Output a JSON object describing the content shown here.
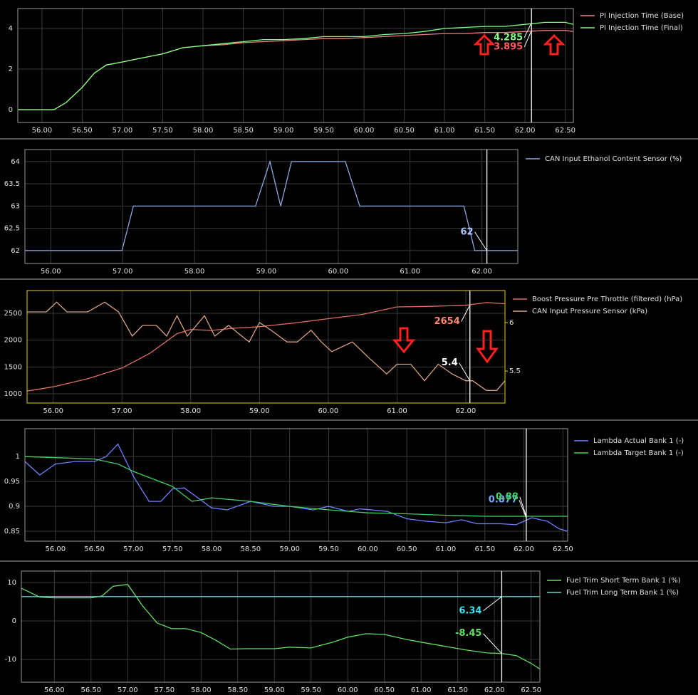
{
  "chart_data": [
    {
      "type": "line",
      "xlim": [
        55.7,
        62.6
      ],
      "ylim": [
        -0.63,
        4.98
      ],
      "xticks": [
        {
          "value": 56,
          "label": "56.00"
        },
        {
          "value": 56.5,
          "label": "56.50"
        },
        {
          "value": 57,
          "label": "57.00"
        },
        {
          "value": 57.5,
          "label": "57.50"
        },
        {
          "value": 58,
          "label": "58.00"
        },
        {
          "value": 58.5,
          "label": "58.50"
        },
        {
          "value": 59,
          "label": "59.00"
        },
        {
          "value": 59.5,
          "label": "59.50"
        },
        {
          "value": 60,
          "label": "60.00"
        },
        {
          "value": 60.5,
          "label": "60.50"
        },
        {
          "value": 61,
          "label": "61.00"
        },
        {
          "value": 61.5,
          "label": "61.50"
        },
        {
          "value": 62,
          "label": "62.00"
        },
        {
          "value": 62.5,
          "label": "62.50"
        }
      ],
      "yticks": [
        0,
        2,
        4
      ],
      "grid": true,
      "cursor": 62.08,
      "cursor_labels": [
        {
          "value": 4.285,
          "color": "#80ff80"
        },
        {
          "value": 3.895,
          "color": "#ff6060"
        }
      ],
      "series": [
        {
          "name": "PI Injection Time (Base)",
          "color": "#f08080",
          "x": [
            55.7,
            56.0,
            56.15,
            56.3,
            56.5,
            56.65,
            56.8,
            57.0,
            57.25,
            57.5,
            57.75,
            58.0,
            58.25,
            58.5,
            58.75,
            59.0,
            59.25,
            59.5,
            59.75,
            60.0,
            60.25,
            60.5,
            60.75,
            61.0,
            61.25,
            61.5,
            61.75,
            62.0,
            62.25,
            62.5,
            62.6
          ],
          "values": [
            0,
            0,
            0,
            0.35,
            1.1,
            1.8,
            2.2,
            2.35,
            2.55,
            2.75,
            3.05,
            3.15,
            3.2,
            3.3,
            3.35,
            3.4,
            3.45,
            3.5,
            3.5,
            3.55,
            3.6,
            3.65,
            3.7,
            3.75,
            3.75,
            3.8,
            3.8,
            3.85,
            3.9,
            3.9,
            3.85
          ]
        },
        {
          "name": "PI Injection Time (Final)",
          "color": "#80ff80",
          "x": [
            55.7,
            56.0,
            56.15,
            56.3,
            56.5,
            56.65,
            56.8,
            57.0,
            57.25,
            57.5,
            57.75,
            58.0,
            58.25,
            58.5,
            58.75,
            59.0,
            59.25,
            59.5,
            59.75,
            60.0,
            60.25,
            60.5,
            60.75,
            61.0,
            61.25,
            61.5,
            61.75,
            62.0,
            62.25,
            62.5,
            62.6
          ],
          "values": [
            0,
            0,
            0,
            0.35,
            1.1,
            1.8,
            2.2,
            2.35,
            2.55,
            2.75,
            3.05,
            3.15,
            3.25,
            3.35,
            3.45,
            3.45,
            3.5,
            3.6,
            3.6,
            3.6,
            3.7,
            3.75,
            3.85,
            4.0,
            4.05,
            4.1,
            4.1,
            4.2,
            4.3,
            4.3,
            4.2
          ]
        }
      ]
    },
    {
      "type": "line",
      "xlim": [
        55.64,
        62.5
      ],
      "ylim": [
        61.71,
        64.27
      ],
      "xticks": [
        {
          "value": 56,
          "label": "56.00"
        },
        {
          "value": 57,
          "label": "57.00"
        },
        {
          "value": 58,
          "label": "58.00"
        },
        {
          "value": 59,
          "label": "59.00"
        },
        {
          "value": 60,
          "label": "60.00"
        },
        {
          "value": 61,
          "label": "61.00"
        },
        {
          "value": 62,
          "label": "62.00"
        }
      ],
      "yticks": [
        62,
        62.5,
        63,
        63.5,
        64
      ],
      "grid": true,
      "cursor": 62.07,
      "cursor_labels": [
        {
          "value": 62,
          "color": "#b0c8ff"
        }
      ],
      "series": [
        {
          "name": "CAN Input Ethanol Content Sensor (%)",
          "color": "#8fa8e0",
          "x": [
            55.64,
            56.99,
            57.15,
            58.85,
            59.05,
            59.2,
            59.35,
            60.1,
            60.3,
            61.75,
            61.9,
            62.5
          ],
          "values": [
            62,
            62,
            63,
            63,
            64,
            63,
            64,
            64,
            63,
            63,
            62,
            62
          ]
        }
      ]
    },
    {
      "type": "line",
      "xlim": [
        55.62,
        62.57
      ],
      "ylim": [
        827,
        2925
      ],
      "y2lim": [
        5.17,
        6.33
      ],
      "xticks": [
        {
          "value": 56,
          "label": "56.00"
        },
        {
          "value": 57,
          "label": "57.00"
        },
        {
          "value": 58,
          "label": "58.00"
        },
        {
          "value": 59,
          "label": "59.00"
        },
        {
          "value": 60,
          "label": "60.00"
        },
        {
          "value": 61,
          "label": "61.00"
        },
        {
          "value": 62,
          "label": "62.00"
        }
      ],
      "yticks": [
        1000,
        1500,
        2000,
        2500
      ],
      "y2ticks": [
        5.5,
        6
      ],
      "grid": true,
      "cursor": 62.06,
      "cursor_labels": [
        {
          "value": 2654,
          "color": "#ff8870"
        },
        {
          "value": 5.4,
          "color": "#ffffff",
          "axis": "y2"
        }
      ],
      "series": [
        {
          "name": "Boost Pressure Pre Throttle (filtered) (hPa)",
          "color": "#e07060",
          "x": [
            55.62,
            56.0,
            56.5,
            57.0,
            57.4,
            57.8,
            58.0,
            58.3,
            58.6,
            59.0,
            59.5,
            60.0,
            60.5,
            61.0,
            61.5,
            62.0,
            62.3,
            62.57
          ],
          "values": [
            1050,
            1130,
            1280,
            1480,
            1750,
            2120,
            2200,
            2180,
            2220,
            2250,
            2320,
            2400,
            2480,
            2620,
            2630,
            2650,
            2700,
            2680
          ]
        },
        {
          "name": "CAN Input Pressure Sensor (kPa)",
          "color": "#d8a080",
          "axis": "y2",
          "x": [
            55.62,
            55.9,
            56.05,
            56.2,
            56.5,
            56.75,
            56.95,
            57.15,
            57.3,
            57.5,
            57.65,
            57.8,
            57.95,
            58.2,
            58.35,
            58.55,
            58.85,
            59.0,
            59.15,
            59.4,
            59.55,
            59.75,
            59.9,
            60.05,
            60.35,
            60.6,
            60.85,
            61.0,
            61.2,
            61.4,
            61.6,
            61.8,
            62.0,
            62.1,
            62.3,
            62.45,
            62.57
          ],
          "values": [
            6.11,
            6.11,
            6.21,
            6.11,
            6.11,
            6.21,
            6.11,
            5.86,
            5.97,
            5.97,
            5.86,
            6.07,
            5.86,
            6.07,
            5.86,
            5.97,
            5.8,
            6.0,
            5.93,
            5.8,
            5.8,
            5.92,
            5.8,
            5.7,
            5.8,
            5.63,
            5.47,
            5.57,
            5.57,
            5.4,
            5.57,
            5.47,
            5.4,
            5.4,
            5.3,
            5.3,
            5.4
          ]
        }
      ]
    },
    {
      "type": "line",
      "xlim": [
        55.61,
        62.56
      ],
      "ylim": [
        0.83,
        1.056
      ],
      "xticks": [
        {
          "value": 56,
          "label": "56.00"
        },
        {
          "value": 56.5,
          "label": "56.50"
        },
        {
          "value": 57,
          "label": "57.00"
        },
        {
          "value": 57.5,
          "label": "57.50"
        },
        {
          "value": 58,
          "label": "58.00"
        },
        {
          "value": 58.5,
          "label": "58.50"
        },
        {
          "value": 59,
          "label": "59.00"
        },
        {
          "value": 59.5,
          "label": "59.50"
        },
        {
          "value": 60,
          "label": "60.00"
        },
        {
          "value": 60.5,
          "label": "60.50"
        },
        {
          "value": 61,
          "label": "61.00"
        },
        {
          "value": 61.5,
          "label": "61.50"
        },
        {
          "value": 62,
          "label": "62.00"
        },
        {
          "value": 62.5,
          "label": "62.50"
        }
      ],
      "yticks": [
        0.85,
        0.9,
        0.95,
        1
      ],
      "grid": true,
      "cursor": 62.03,
      "cursor_labels": [
        {
          "value": 0.877,
          "color": "#7aa8ff"
        },
        {
          "value": 0.88,
          "color": "#40d060"
        }
      ],
      "series": [
        {
          "name": "Lambda Actual Bank 1 (-)",
          "color": "#7080ff",
          "x": [
            55.61,
            55.8,
            56.0,
            56.25,
            56.5,
            56.65,
            56.8,
            57.0,
            57.2,
            57.35,
            57.5,
            57.65,
            57.8,
            58.0,
            58.2,
            58.5,
            58.8,
            59.0,
            59.3,
            59.5,
            59.75,
            59.9,
            60.25,
            60.5,
            60.75,
            61.0,
            61.2,
            61.4,
            61.7,
            61.9,
            62.1,
            62.3,
            62.45,
            62.56
          ],
          "values": [
            0.99,
            0.963,
            0.985,
            0.99,
            0.99,
            1.0,
            1.025,
            0.96,
            0.91,
            0.91,
            0.935,
            0.937,
            0.92,
            0.897,
            0.893,
            0.91,
            0.9,
            0.9,
            0.893,
            0.9,
            0.89,
            0.895,
            0.89,
            0.875,
            0.87,
            0.867,
            0.873,
            0.865,
            0.865,
            0.863,
            0.877,
            0.87,
            0.855,
            0.85
          ]
        },
        {
          "name": "Lambda Target Bank 1 (-)",
          "color": "#40d060",
          "x": [
            55.61,
            56.5,
            56.8,
            57.0,
            57.5,
            57.75,
            58.0,
            58.5,
            59.0,
            59.5,
            60.0,
            60.5,
            61.0,
            61.5,
            62.0,
            62.56
          ],
          "values": [
            1.0,
            0.995,
            0.985,
            0.97,
            0.94,
            0.91,
            0.917,
            0.91,
            0.9,
            0.893,
            0.887,
            0.885,
            0.882,
            0.88,
            0.88,
            0.88
          ]
        }
      ]
    },
    {
      "type": "line",
      "xlim": [
        55.55,
        62.62
      ],
      "ylim": [
        -15.9,
        12.96
      ],
      "xticks": [
        {
          "value": 56,
          "label": "56.00"
        },
        {
          "value": 56.5,
          "label": "56.50"
        },
        {
          "value": 57,
          "label": "57.00"
        },
        {
          "value": 57.5,
          "label": "57.50"
        },
        {
          "value": 58,
          "label": "58.00"
        },
        {
          "value": 58.5,
          "label": "58.50"
        },
        {
          "value": 59,
          "label": "59.00"
        },
        {
          "value": 59.5,
          "label": "59.50"
        },
        {
          "value": 60,
          "label": "60.00"
        },
        {
          "value": 60.5,
          "label": "60.50"
        },
        {
          "value": 61,
          "label": "61.00"
        },
        {
          "value": 61.5,
          "label": "61.50"
        },
        {
          "value": 62,
          "label": "62.00"
        },
        {
          "value": 62.5,
          "label": "62.50"
        }
      ],
      "yticks": [
        -10,
        0,
        10
      ],
      "grid": true,
      "cursor": 62.1,
      "cursor_labels": [
        {
          "value": 6.34,
          "color": "#40e0f0"
        },
        {
          "value": -8.45,
          "color": "#60e060"
        }
      ],
      "series": [
        {
          "name": "Fuel Trim Short Term Bank 1 (%)",
          "color": "#60e060",
          "x": [
            55.55,
            55.8,
            56.0,
            56.5,
            56.65,
            56.8,
            57.0,
            57.2,
            57.4,
            57.6,
            57.8,
            58.0,
            58.2,
            58.4,
            58.6,
            59.0,
            59.2,
            59.5,
            59.8,
            60.0,
            60.25,
            60.5,
            60.8,
            61.0,
            61.3,
            61.6,
            61.9,
            62.1,
            62.3,
            62.5,
            62.62
          ],
          "values": [
            8.5,
            6.2,
            6.0,
            6.0,
            6.5,
            9,
            9.5,
            4,
            -0.5,
            -2,
            -2,
            -3,
            -5,
            -7.3,
            -7.2,
            -7.2,
            -6.8,
            -7.0,
            -5.5,
            -4.2,
            -3.3,
            -3.5,
            -4.8,
            -5.5,
            -6.5,
            -7.5,
            -8.3,
            -8.45,
            -9,
            -11,
            -12.5
          ]
        },
        {
          "name": "Fuel Trim Long Term Bank 1 (%)",
          "color": "#60d0d0",
          "x": [
            55.55,
            62.62
          ],
          "values": [
            6.34,
            6.34
          ]
        }
      ]
    }
  ]
}
